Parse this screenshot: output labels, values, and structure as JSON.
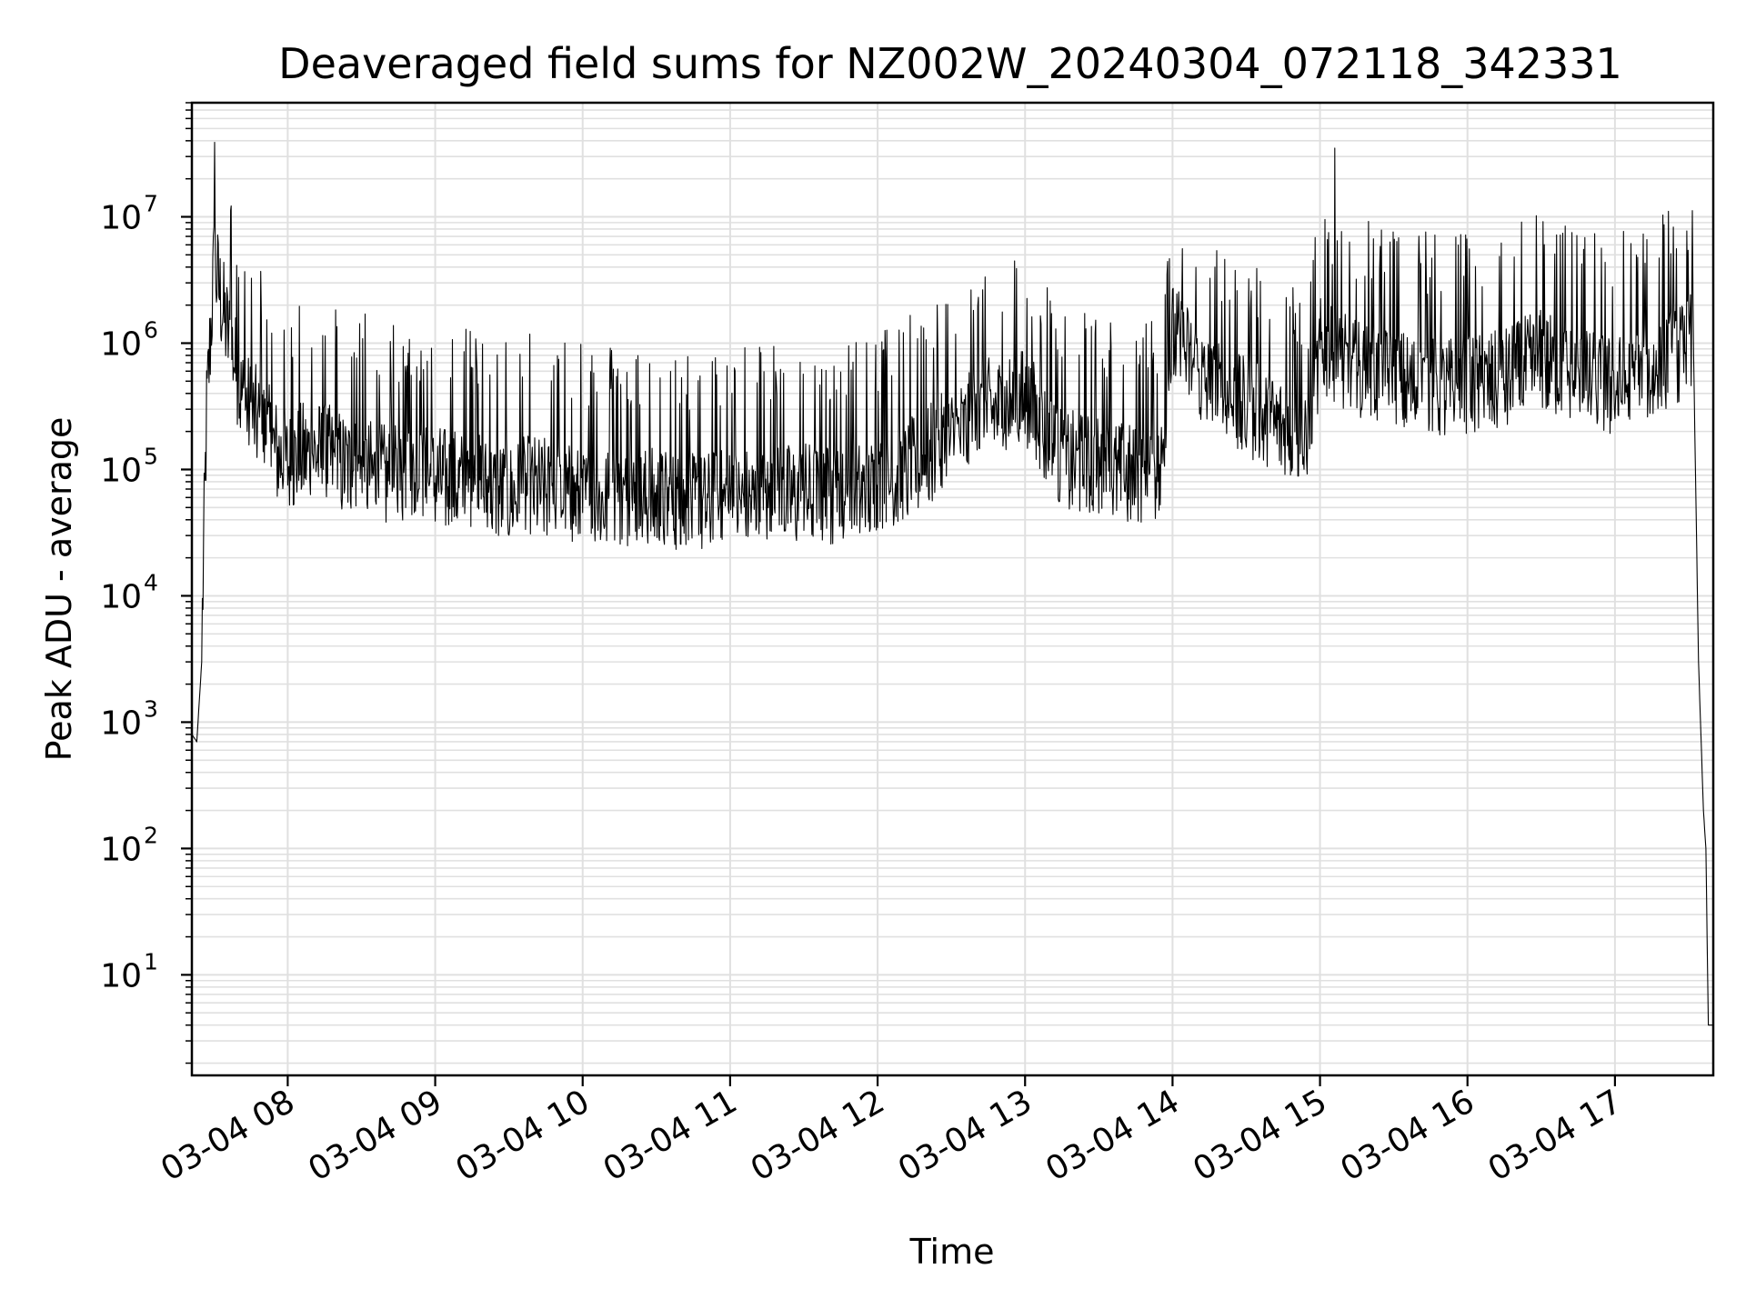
{
  "chart_data": {
    "type": "line",
    "title": "Deaveraged field sums for NZ002W_20240304_072118_342331",
    "xlabel": "Time",
    "ylabel": "Peak ADU - average",
    "yscale": "log",
    "ylim": [
      1.6,
      80000000
    ],
    "xlim": [
      "2024-03-04 07:21",
      "2024-03-04 17:40"
    ],
    "x_ticks": [
      "03-04 08",
      "03-04 09",
      "03-04 10",
      "03-04 11",
      "03-04 12",
      "03-04 13",
      "03-04 14",
      "03-04 15",
      "03-04 16",
      "03-04 17"
    ],
    "y_ticks": [
      {
        "base": "10",
        "exp": "1"
      },
      {
        "base": "10",
        "exp": "2"
      },
      {
        "base": "10",
        "exp": "3"
      },
      {
        "base": "10",
        "exp": "4"
      },
      {
        "base": "10",
        "exp": "5"
      },
      {
        "base": "10",
        "exp": "6"
      },
      {
        "base": "10",
        "exp": "7"
      }
    ],
    "grid": true,
    "line_color": "#000000",
    "grid_color": "#e0e0e0",
    "series": [
      {
        "x": [
          "2024-03-04 07:21",
          "2024-03-04 07:23",
          "2024-03-04 07:25",
          "2024-03-04 07:27",
          "2024-03-04 07:28",
          "2024-03-04 07:30",
          "2024-03-04 07:32",
          "2024-03-04 07:34",
          "2024-03-04 07:36",
          "2024-03-04 07:38",
          "2024-03-04 07:40",
          "2024-03-04 07:45",
          "2024-03-04 07:50",
          "2024-03-04 07:55",
          "2024-03-04 08:00",
          "2024-03-04 08:10",
          "2024-03-04 08:20",
          "2024-03-04 08:30",
          "2024-03-04 08:40",
          "2024-03-04 08:50",
          "2024-03-04 09:00",
          "2024-03-04 09:10",
          "2024-03-04 09:20",
          "2024-03-04 09:30",
          "2024-03-04 09:40",
          "2024-03-04 09:50",
          "2024-03-04 10:00",
          "2024-03-04 10:15",
          "2024-03-04 10:30",
          "2024-03-04 10:45",
          "2024-03-04 11:00",
          "2024-03-04 11:15",
          "2024-03-04 11:30",
          "2024-03-04 11:45",
          "2024-03-04 12:00",
          "2024-03-04 12:15",
          "2024-03-04 12:30",
          "2024-03-04 12:45",
          "2024-03-04 13:00",
          "2024-03-04 13:15",
          "2024-03-04 13:30",
          "2024-03-04 13:45",
          "2024-03-04 13:55",
          "2024-03-04 14:00",
          "2024-03-04 14:05",
          "2024-03-04 14:15",
          "2024-03-04 14:30",
          "2024-03-04 14:45",
          "2024-03-04 14:55",
          "2024-03-04 15:00",
          "2024-03-04 15:05",
          "2024-03-04 15:15",
          "2024-03-04 15:30",
          "2024-03-04 15:45",
          "2024-03-04 16:00",
          "2024-03-04 16:15",
          "2024-03-04 16:30",
          "2024-03-04 16:45",
          "2024-03-04 17:00",
          "2024-03-04 17:15",
          "2024-03-04 17:30",
          "2024-03-04 17:32",
          "2024-03-04 17:34",
          "2024-03-04 17:36",
          "2024-03-04 17:37",
          "2024-03-04 17:38",
          "2024-03-04 17:39",
          "2024-03-04 17:40"
        ],
        "y": [
          800,
          700,
          3000,
          200000,
          500000,
          3000000,
          2000000,
          1200000,
          800000,
          600000,
          300000,
          200000,
          150000,
          100000,
          80000,
          100000,
          80000,
          70000,
          60000,
          60000,
          60000,
          55000,
          50000,
          45000,
          50000,
          45000,
          40000,
          40000,
          40000,
          35000,
          40000,
          40000,
          45000,
          40000,
          50000,
          70000,
          120000,
          200000,
          250000,
          80000,
          70000,
          60000,
          60000,
          800000,
          600000,
          300000,
          200000,
          150000,
          90000,
          600000,
          500000,
          400000,
          350000,
          300000,
          300000,
          350000,
          500000,
          350000,
          300000,
          400000,
          600000,
          800000,
          3000,
          200,
          100,
          4,
          4,
          4
        ]
      }
    ],
    "annotations": [
      {
        "x": "2024-03-04 15:06",
        "y": 35000000,
        "label": ""
      }
    ]
  }
}
